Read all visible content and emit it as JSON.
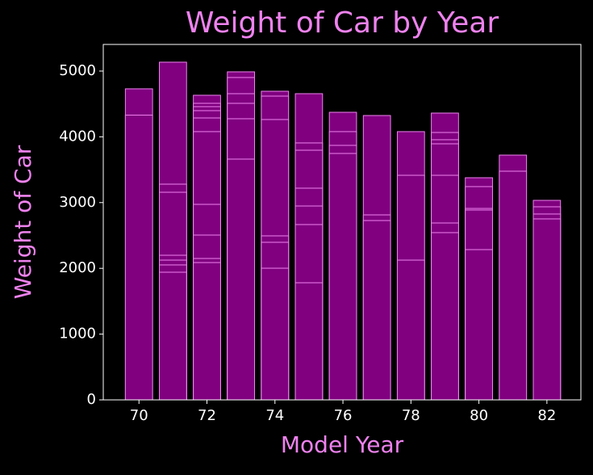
{
  "chart_data": {
    "type": "bar",
    "title": "Weight of Car by Year",
    "x_label": "Model Year",
    "y_label": "Weight of Car",
    "color": "#800080",
    "edge_color": "#ee82ee",
    "text_color": "#ee82ee",
    "x": [
      70,
      70,
      71,
      71,
      71,
      71,
      71,
      71,
      71,
      72,
      72,
      72,
      72,
      72,
      72,
      72,
      72,
      72,
      72,
      73,
      73,
      73,
      73,
      73,
      73,
      74,
      74,
      74,
      74,
      74,
      74,
      75,
      75,
      75,
      75,
      75,
      75,
      75,
      76,
      76,
      76,
      76,
      77,
      77,
      77,
      78,
      78,
      78,
      79,
      79,
      79,
      79,
      79,
      79,
      79,
      80,
      80,
      80,
      80,
      80,
      81,
      81,
      82,
      82,
      82,
      82
    ],
    "values": [
      4730,
      4330,
      5135,
      3280,
      3157,
      2199,
      2125,
      2052,
      1941,
      4632,
      4509,
      4459,
      4398,
      4287,
      4079,
      2973,
      2506,
      2150,
      2088,
      4988,
      4902,
      4656,
      4509,
      4275,
      3661,
      4693,
      4619,
      4263,
      2494,
      2396,
      2002,
      4656,
      3907,
      3796,
      3219,
      2948,
      2666,
      1781,
      4373,
      4079,
      3870,
      3747,
      4324,
      2813,
      2727,
      4079,
      3415,
      2125,
      4361,
      4066,
      3956,
      3894,
      3415,
      2690,
      2543,
      3378,
      3243,
      2911,
      2887,
      2285,
      3722,
      3477,
      3034,
      2936,
      2826,
      2752
    ],
    "bar_width": 0.8,
    "xlim": [
      68.95,
      83.0
    ],
    "xticks": [
      70,
      72,
      74,
      76,
      78,
      80,
      82
    ],
    "ylim": [
      0,
      5405
    ],
    "yticks": [
      0,
      1000,
      2000,
      3000,
      4000,
      5000
    ]
  }
}
